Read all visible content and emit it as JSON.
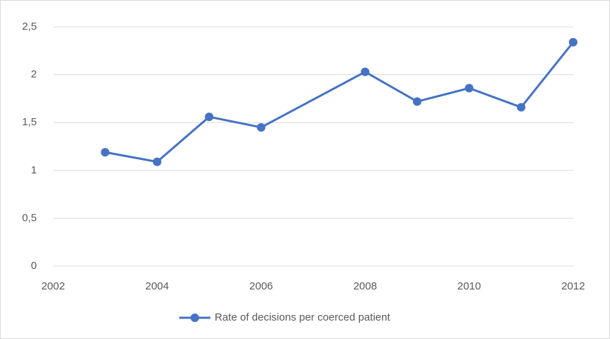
{
  "chart_data": {
    "type": "line",
    "x": [
      2003,
      2004,
      2005,
      2006,
      2008,
      2009,
      2010,
      2011,
      2012
    ],
    "series": [
      {
        "name": "Rate of decisions per coerced patient",
        "color": "#4472c4",
        "values": [
          1.19,
          1.09,
          1.56,
          1.45,
          2.03,
          1.72,
          1.86,
          1.66,
          2.34
        ]
      }
    ],
    "xlim": [
      2002,
      2012
    ],
    "xticks": [
      2002,
      2004,
      2006,
      2008,
      2010,
      2012
    ],
    "ylim": [
      0,
      2.5
    ],
    "yticks": [
      0,
      {
        "value": 0.5,
        "label": "0,5"
      },
      1,
      {
        "value": 1.5,
        "label": "1,5"
      },
      2,
      {
        "value": 2.5,
        "label": "2,5"
      }
    ],
    "grid": true,
    "legend": "bottom"
  }
}
